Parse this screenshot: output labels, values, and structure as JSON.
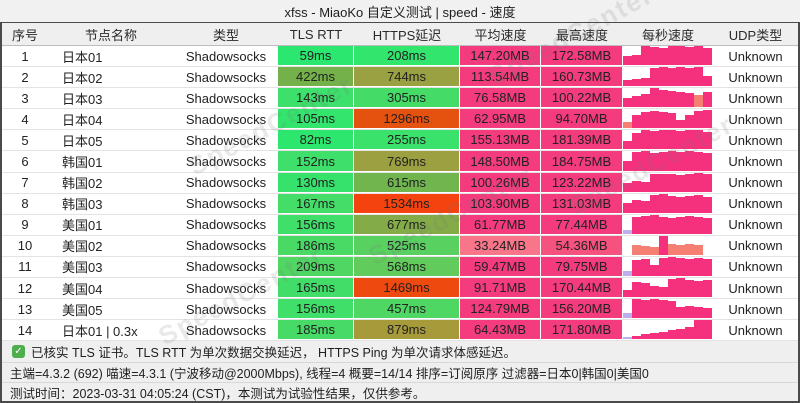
{
  "title": "xfss - MiaoKo 自定义测试 | speed - 速度",
  "watermark": "SpeedCenter",
  "columns": [
    "序号",
    "节点名称",
    "类型",
    "TLS RTT",
    "HTTPS延迟",
    "平均速度",
    "最高速度",
    "每秒速度",
    "UDP类型"
  ],
  "bar_colors": {
    "p": "#f5317d",
    "s": "#f57f72",
    "l": "#bfaeec"
  },
  "default_speed_color": "#f43b7e",
  "rows": [
    {
      "seq": "1",
      "node": "日本01",
      "type": "Shadowsocks",
      "tls": "59ms",
      "tls_c": "#2be76f",
      "https": "208ms",
      "https_c": "#32e56d",
      "avg": "147.20MB",
      "avg_c": "#f43b7e",
      "max": "172.58MB",
      "max_c": "#f43b7e",
      "udp": "Unknown",
      "bars": [
        [
          0.5,
          "p"
        ],
        [
          0.55,
          "p"
        ],
        [
          1,
          "p"
        ],
        [
          0.95,
          "p"
        ],
        [
          0.9,
          "p"
        ],
        [
          1,
          "p"
        ],
        [
          1,
          "p"
        ],
        [
          0.95,
          "p"
        ],
        [
          1,
          "p"
        ],
        [
          0.9,
          "p"
        ]
      ]
    },
    {
      "seq": "2",
      "node": "日本02",
      "type": "Shadowsocks",
      "tls": "422ms",
      "tls_c": "#74b14b",
      "https": "744ms",
      "https_c": "#9aa142",
      "avg": "113.54MB",
      "avg_c": "#f43b7e",
      "max": "160.73MB",
      "max_c": "#f43b7e",
      "udp": "Unknown",
      "bars": [
        [
          0.35,
          "p"
        ],
        [
          0.4,
          "p"
        ],
        [
          0.45,
          "p"
        ],
        [
          0.95,
          "p"
        ],
        [
          1,
          "p"
        ],
        [
          0.95,
          "p"
        ],
        [
          1,
          "p"
        ],
        [
          0.95,
          "p"
        ],
        [
          1,
          "p"
        ],
        [
          0.55,
          "p"
        ]
      ]
    },
    {
      "seq": "3",
      "node": "日本03",
      "type": "Shadowsocks",
      "tls": "143ms",
      "tls_c": "#3ce06b",
      "https": "305ms",
      "https_c": "#44dc67",
      "avg": "76.58MB",
      "avg_c": "#f43b7e",
      "max": "100.22MB",
      "max_c": "#f43b7e",
      "udp": "Unknown",
      "bars": [
        [
          0.5,
          "p"
        ],
        [
          0.6,
          "p"
        ],
        [
          0.7,
          "p"
        ],
        [
          1,
          "p"
        ],
        [
          0.9,
          "p"
        ],
        [
          0.85,
          "p"
        ],
        [
          0.8,
          "p"
        ],
        [
          0.75,
          "p"
        ],
        [
          0.65,
          "s"
        ],
        [
          0.8,
          "p"
        ]
      ]
    },
    {
      "seq": "4",
      "node": "日本04",
      "type": "Shadowsocks",
      "tls": "105ms",
      "tls_c": "#33e46d",
      "https": "1296ms",
      "https_c": "#e5510e",
      "avg": "62.95MB",
      "avg_c": "#f43b7e",
      "max": "94.70MB",
      "max_c": "#f43b7e",
      "udp": "Unknown",
      "bars": [
        [
          0.35,
          "s"
        ],
        [
          0.7,
          "p"
        ],
        [
          0.85,
          "p"
        ],
        [
          0.9,
          "p"
        ],
        [
          0.85,
          "p"
        ],
        [
          0.8,
          "p"
        ],
        [
          0.45,
          "p"
        ],
        [
          0.7,
          "p"
        ],
        [
          0.9,
          "p"
        ],
        [
          0.95,
          "p"
        ]
      ]
    },
    {
      "seq": "5",
      "node": "日本05",
      "type": "Shadowsocks",
      "tls": "82ms",
      "tls_c": "#2de66e",
      "https": "255ms",
      "https_c": "#3ae16b",
      "avg": "155.13MB",
      "avg_c": "#f43b7e",
      "max": "181.39MB",
      "max_c": "#f43b7e",
      "udp": "Unknown",
      "bars": [
        [
          0.45,
          "p"
        ],
        [
          0.85,
          "p"
        ],
        [
          1,
          "p"
        ],
        [
          0.95,
          "p"
        ],
        [
          1,
          "p"
        ],
        [
          1,
          "p"
        ],
        [
          0.95,
          "p"
        ],
        [
          1,
          "p"
        ],
        [
          1,
          "p"
        ],
        [
          0.9,
          "p"
        ]
      ]
    },
    {
      "seq": "6",
      "node": "韩国01",
      "type": "Shadowsocks",
      "tls": "152ms",
      "tls_c": "#3edf6a",
      "https": "769ms",
      "https_c": "#9ca041",
      "avg": "148.50MB",
      "avg_c": "#f43b7e",
      "max": "184.75MB",
      "max_c": "#f43b7e",
      "udp": "Unknown",
      "bars": [
        [
          0.5,
          "p"
        ],
        [
          0.95,
          "p"
        ],
        [
          1,
          "p"
        ],
        [
          0.9,
          "p"
        ],
        [
          0.95,
          "p"
        ],
        [
          1,
          "p"
        ],
        [
          0.95,
          "p"
        ],
        [
          1,
          "p"
        ],
        [
          0.95,
          "p"
        ],
        [
          0.9,
          "p"
        ]
      ]
    },
    {
      "seq": "7",
      "node": "韩国02",
      "type": "Shadowsocks",
      "tls": "130ms",
      "tls_c": "#37e26c",
      "https": "615ms",
      "https_c": "#70b54e",
      "avg": "100.26MB",
      "avg_c": "#f43b7e",
      "max": "123.22MB",
      "max_c": "#f43b7e",
      "udp": "Unknown",
      "bars": [
        [
          0.45,
          "p"
        ],
        [
          0.55,
          "p"
        ],
        [
          0.5,
          "p"
        ],
        [
          0.9,
          "p"
        ],
        [
          0.95,
          "p"
        ],
        [
          0.9,
          "p"
        ],
        [
          0.85,
          "p"
        ],
        [
          0.95,
          "p"
        ],
        [
          1,
          "p"
        ],
        [
          0.9,
          "p"
        ]
      ]
    },
    {
      "seq": "8",
      "node": "韩国03",
      "type": "Shadowsocks",
      "tls": "167ms",
      "tls_c": "#43dd68",
      "https": "1534ms",
      "https_c": "#f4430e",
      "avg": "103.90MB",
      "avg_c": "#f43b7e",
      "max": "131.03MB",
      "max_c": "#f43b7e",
      "udp": "Unknown",
      "bars": [
        [
          0.5,
          "p"
        ],
        [
          0.65,
          "p"
        ],
        [
          0.6,
          "p"
        ],
        [
          0.95,
          "p"
        ],
        [
          1,
          "p"
        ],
        [
          0.9,
          "p"
        ],
        [
          0.85,
          "p"
        ],
        [
          0.9,
          "p"
        ],
        [
          0.95,
          "p"
        ],
        [
          0.85,
          "p"
        ]
      ]
    },
    {
      "seq": "9",
      "node": "美国01",
      "type": "Shadowsocks",
      "tls": "156ms",
      "tls_c": "#3fdf69",
      "https": "677ms",
      "https_c": "#83ac49",
      "avg": "61.77MB",
      "avg_c": "#f43b7e",
      "max": "77.44MB",
      "max_c": "#f43b7e",
      "udp": "Unknown",
      "bars": [
        [
          0.2,
          "l"
        ],
        [
          0.9,
          "p"
        ],
        [
          0.95,
          "p"
        ],
        [
          1,
          "p"
        ],
        [
          0.9,
          "p"
        ],
        [
          0.85,
          "p"
        ],
        [
          0.9,
          "p"
        ],
        [
          0.95,
          "p"
        ],
        [
          0.9,
          "p"
        ],
        [
          0.85,
          "p"
        ]
      ]
    },
    {
      "seq": "10",
      "node": "美国02",
      "type": "Shadowsocks",
      "tls": "186ms",
      "tls_c": "#49da66",
      "https": "525ms",
      "https_c": "#59d160",
      "avg": "33.24MB",
      "avg_c": "#f9758a",
      "max": "54.36MB",
      "max_c": "#f6527f",
      "udp": "Unknown",
      "bars": [
        [
          0,
          "p"
        ],
        [
          0.5,
          "s"
        ],
        [
          0.45,
          "s"
        ],
        [
          0.4,
          "s"
        ],
        [
          1,
          "p"
        ],
        [
          0.55,
          "s"
        ],
        [
          0.5,
          "s"
        ],
        [
          0.55,
          "s"
        ],
        [
          0.5,
          "s"
        ],
        [
          0,
          "p"
        ]
      ]
    },
    {
      "seq": "11",
      "node": "美国03",
      "type": "Shadowsocks",
      "tls": "209ms",
      "tls_c": "#50d663",
      "https": "568ms",
      "https_c": "#61cc5c",
      "avg": "59.47MB",
      "avg_c": "#f43b7e",
      "max": "79.75MB",
      "max_c": "#f43b7e",
      "udp": "Unknown",
      "bars": [
        [
          0.25,
          "l"
        ],
        [
          0.85,
          "p"
        ],
        [
          0.9,
          "p"
        ],
        [
          0.6,
          "p"
        ],
        [
          0.95,
          "p"
        ],
        [
          1,
          "p"
        ],
        [
          0.95,
          "p"
        ],
        [
          0.9,
          "p"
        ],
        [
          0.95,
          "p"
        ],
        [
          0.9,
          "p"
        ]
      ]
    },
    {
      "seq": "12",
      "node": "美国04",
      "type": "Shadowsocks",
      "tls": "165ms",
      "tls_c": "#42dd68",
      "https": "1469ms",
      "https_c": "#ee4a10",
      "avg": "91.71MB",
      "avg_c": "#f43b7e",
      "max": "170.44MB",
      "max_c": "#f43b7e",
      "udp": "Unknown",
      "bars": [
        [
          0.4,
          "p"
        ],
        [
          0.8,
          "p"
        ],
        [
          0.75,
          "p"
        ],
        [
          0.6,
          "p"
        ],
        [
          0.55,
          "p"
        ],
        [
          0.95,
          "p"
        ],
        [
          1,
          "p"
        ],
        [
          0.9,
          "p"
        ],
        [
          0.85,
          "p"
        ],
        [
          0.9,
          "p"
        ]
      ]
    },
    {
      "seq": "13",
      "node": "美国05",
      "type": "Shadowsocks",
      "tls": "156ms",
      "tls_c": "#3fdf69",
      "https": "457ms",
      "https_c": "#4fd763",
      "avg": "124.79MB",
      "avg_c": "#f43b7e",
      "max": "156.20MB",
      "max_c": "#f43b7e",
      "udp": "Unknown",
      "bars": [
        [
          0.3,
          "l"
        ],
        [
          1,
          "p"
        ],
        [
          0.95,
          "p"
        ],
        [
          1,
          "p"
        ],
        [
          0.95,
          "p"
        ],
        [
          0.9,
          "p"
        ],
        [
          0.6,
          "p"
        ],
        [
          0.65,
          "p"
        ],
        [
          0.6,
          "p"
        ],
        [
          0.55,
          "p"
        ]
      ]
    },
    {
      "seq": "14",
      "node": "日本01 | 0.3x",
      "type": "Shadowsocks",
      "tls": "185ms",
      "tls_c": "#48da66",
      "https": "879ms",
      "https_c": "#a69a3b",
      "avg": "64.43MB",
      "avg_c": "#f43b7e",
      "max": "171.80MB",
      "max_c": "#f43b7e",
      "udp": "Unknown",
      "bars": [
        [
          0.1,
          "l"
        ],
        [
          0.15,
          "p"
        ],
        [
          0.3,
          "p"
        ],
        [
          0.35,
          "p"
        ],
        [
          0.4,
          "p"
        ],
        [
          0.5,
          "p"
        ],
        [
          0.55,
          "p"
        ],
        [
          0.65,
          "p"
        ],
        [
          1,
          "p"
        ],
        [
          1,
          "p"
        ]
      ]
    }
  ],
  "footer": {
    "line1": "已核实 TLS 证书。TLS RTT 为单次数据交换延迟， HTTPS Ping 为单次请求体感延迟。",
    "line2": "主端=4.3.2 (692) 喵速=4.3.1 (宁波移动@2000Mbps), 线程=4 概要=14/14 排序=订阅原序 过滤器=日本0|韩国0|美国0",
    "line3": "测试时间：2023-03-31 04:05:24 (CST)，本测试为试验性结果，仅供参考。",
    "check_glyph": "✓"
  }
}
